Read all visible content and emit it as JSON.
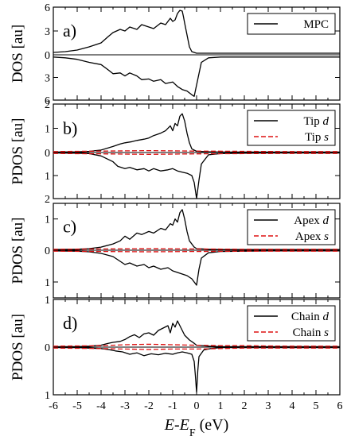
{
  "chart_data": {
    "type": "line",
    "xlabel": {
      "main": "E",
      "sep": "-",
      "e2": "E",
      "sub": "F",
      "unit": " (eV)"
    },
    "xlim": [
      -6,
      6
    ],
    "xticks": [
      "-6",
      "-5",
      "-4",
      "-3",
      "-2",
      "-1",
      "0",
      "1",
      "2",
      "3",
      "4",
      "5",
      "6"
    ],
    "colors": {
      "d": "#000000",
      "s": "#dd1111"
    },
    "panels": [
      {
        "id": "a",
        "letter": "a)",
        "ylabel": "DOS [au]",
        "ylim_top": 6,
        "ylim_bottom": 6,
        "yticks_top": [
          "6",
          "3",
          "0"
        ],
        "yticks_bottom": [
          "3",
          "6"
        ],
        "legend": [
          {
            "name": "MPC",
            "style": "solid",
            "color": "#000000"
          }
        ],
        "series": [
          {
            "name": "MPC (up)",
            "style": "solid",
            "color": "#000000",
            "sign": 1,
            "x": [
              -6,
              -5.5,
              -5,
              -4.5,
              -4,
              -3.7,
              -3.5,
              -3.2,
              -3,
              -2.8,
              -2.5,
              -2.3,
              -2,
              -1.8,
              -1.5,
              -1.3,
              -1.1,
              -1,
              -0.9,
              -0.8,
              -0.7,
              -0.6,
              -0.55,
              -0.5,
              -0.4,
              -0.3,
              -0.2,
              0,
              0.2,
              0.5,
              1,
              2,
              3,
              4,
              5,
              6
            ],
            "y": [
              0.3,
              0.4,
              0.6,
              1,
              1.5,
              2.3,
              2.8,
              3.2,
              3,
              3.5,
              3.2,
              3.8,
              3.5,
              3.3,
              4,
              3.8,
              4.6,
              4.2,
              4.4,
              5.2,
              5.6,
              5.5,
              4.8,
              4,
              2.5,
              1,
              0.4,
              0.2,
              0.2,
              0.2,
              0.2,
              0.2,
              0.2,
              0.2,
              0.2,
              0.2
            ]
          },
          {
            "name": "MPC (down)",
            "style": "solid",
            "color": "#000000",
            "sign": -1,
            "x": [
              -6,
              -5.5,
              -5,
              -4.5,
              -4,
              -3.7,
              -3.5,
              -3.2,
              -3,
              -2.8,
              -2.5,
              -2.3,
              -2,
              -1.8,
              -1.5,
              -1.3,
              -1,
              -0.8,
              -0.6,
              -0.4,
              -0.2,
              -0.1,
              0,
              0.1,
              0.2,
              0.5,
              1,
              2,
              3,
              4,
              5,
              6
            ],
            "y": [
              0.3,
              0.4,
              0.6,
              1,
              1.3,
              2,
              2.5,
              2.4,
              2.8,
              2.4,
              2.8,
              3.3,
              3.2,
              3.5,
              3.3,
              3.8,
              3.6,
              4.2,
              4.6,
              4.8,
              5.3,
              5.5,
              4,
              2.5,
              1,
              0.4,
              0.3,
              0.3,
              0.3,
              0.3,
              0.3,
              0.3
            ]
          }
        ]
      },
      {
        "id": "b",
        "letter": "b)",
        "ylabel": "PDOS [au]",
        "ylim_top": 2,
        "ylim_bottom": 2,
        "yticks_top": [
          "2",
          "1",
          "0"
        ],
        "yticks_bottom": [
          "1",
          "2"
        ],
        "legend": [
          {
            "name": "Tip ",
            "italic": "d",
            "style": "solid",
            "color": "#000000"
          },
          {
            "name": "Tip ",
            "italic": "s",
            "style": "dashed",
            "color": "#dd1111"
          }
        ],
        "series": [
          {
            "name": "Tip d (up)",
            "style": "solid",
            "color": "#000000",
            "sign": 1,
            "x": [
              -6,
              -5,
              -4.5,
              -4,
              -3.5,
              -3.2,
              -3,
              -2.7,
              -2.5,
              -2.2,
              -2,
              -1.8,
              -1.5,
              -1.3,
              -1.1,
              -1,
              -0.9,
              -0.8,
              -0.7,
              -0.6,
              -0.5,
              -0.4,
              -0.3,
              -0.2,
              0,
              0.5,
              1,
              2,
              3,
              4,
              5,
              6
            ],
            "y": [
              0.02,
              0.03,
              0.05,
              0.1,
              0.25,
              0.35,
              0.4,
              0.45,
              0.5,
              0.55,
              0.6,
              0.7,
              0.8,
              0.9,
              1.1,
              0.9,
              1.2,
              1.1,
              1.5,
              1.6,
              1.3,
              0.8,
              0.4,
              0.15,
              0.05,
              0.03,
              0.02,
              0.02,
              0.02,
              0.02,
              0.02,
              0.02
            ]
          },
          {
            "name": "Tip d (down)",
            "style": "solid",
            "color": "#000000",
            "sign": -1,
            "x": [
              -6,
              -5,
              -4.5,
              -4,
              -3.7,
              -3.5,
              -3.3,
              -3,
              -2.8,
              -2.5,
              -2.2,
              -2,
              -1.8,
              -1.5,
              -1.2,
              -1,
              -0.8,
              -0.6,
              -0.4,
              -0.2,
              -0.1,
              0,
              0.1,
              0.2,
              0.5,
              1,
              2,
              3,
              4,
              5,
              6
            ],
            "y": [
              0.02,
              0.03,
              0.05,
              0.15,
              0.3,
              0.4,
              0.6,
              0.7,
              0.65,
              0.75,
              0.7,
              0.8,
              0.7,
              0.8,
              0.75,
              0.7,
              0.8,
              0.85,
              0.9,
              1.0,
              1.3,
              2.0,
              1.2,
              0.5,
              0.1,
              0.05,
              0.03,
              0.02,
              0.02,
              0.02,
              0.02
            ]
          },
          {
            "name": "Tip s (up)",
            "style": "dashed",
            "color": "#dd1111",
            "sign": 1,
            "x": [
              -6,
              -4,
              -2,
              0,
              2,
              4,
              6
            ],
            "y": [
              0.04,
              0.06,
              0.08,
              0.06,
              0.05,
              0.04,
              0.04
            ]
          },
          {
            "name": "Tip s (down)",
            "style": "dashed",
            "color": "#dd1111",
            "sign": -1,
            "x": [
              -6,
              -4,
              -2,
              0,
              2,
              4,
              6
            ],
            "y": [
              0.04,
              0.06,
              0.08,
              0.06,
              0.05,
              0.04,
              0.04
            ]
          }
        ]
      },
      {
        "id": "c",
        "letter": "c)",
        "ylabel": "PDOS [au]",
        "ylim_top": 1.5,
        "ylim_bottom": 1.5,
        "yticks_top": [
          "1",
          "0"
        ],
        "yticks_bottom": [
          "1"
        ],
        "ytick_values_top": [
          1,
          0
        ],
        "ytick_values_bottom": [
          1
        ],
        "legend": [
          {
            "name": "Apex ",
            "italic": "d",
            "style": "solid",
            "color": "#000000"
          },
          {
            "name": "Apex ",
            "italic": "s",
            "style": "dashed",
            "color": "#dd1111"
          }
        ],
        "series": [
          {
            "name": "Apex d (up)",
            "style": "solid",
            "color": "#000000",
            "sign": 1,
            "x": [
              -6,
              -5,
              -4.5,
              -4,
              -3.5,
              -3.2,
              -3,
              -2.8,
              -2.5,
              -2.3,
              -2,
              -1.8,
              -1.5,
              -1.3,
              -1.1,
              -1,
              -0.9,
              -0.8,
              -0.7,
              -0.6,
              -0.5,
              -0.4,
              -0.3,
              -0.1,
              0,
              0.5,
              1,
              2,
              3,
              4,
              5,
              6
            ],
            "y": [
              0.02,
              0.03,
              0.05,
              0.1,
              0.2,
              0.3,
              0.45,
              0.35,
              0.55,
              0.5,
              0.6,
              0.55,
              0.7,
              0.65,
              0.85,
              0.8,
              1.0,
              0.9,
              1.2,
              1.3,
              1.0,
              0.6,
              0.3,
              0.1,
              0.05,
              0.03,
              0.02,
              0.02,
              0.02,
              0.02,
              0.02,
              0.02
            ]
          },
          {
            "name": "Apex d (down)",
            "style": "solid",
            "color": "#000000",
            "sign": -1,
            "x": [
              -6,
              -5,
              -4.5,
              -4,
              -3.5,
              -3.3,
              -3,
              -2.8,
              -2.5,
              -2.2,
              -2,
              -1.8,
              -1.5,
              -1.2,
              -1,
              -0.8,
              -0.6,
              -0.4,
              -0.2,
              -0.1,
              0,
              0.1,
              0.2,
              0.5,
              1,
              2,
              3,
              4,
              5,
              6
            ],
            "y": [
              0.02,
              0.03,
              0.05,
              0.1,
              0.2,
              0.3,
              0.45,
              0.4,
              0.5,
              0.45,
              0.55,
              0.5,
              0.6,
              0.55,
              0.65,
              0.7,
              0.75,
              0.8,
              0.9,
              1.0,
              1.1,
              0.6,
              0.25,
              0.08,
              0.04,
              0.03,
              0.02,
              0.02,
              0.02,
              0.02
            ]
          },
          {
            "name": "Apex s (up)",
            "style": "dashed",
            "color": "#dd1111",
            "sign": 1,
            "x": [
              -6,
              -4,
              -2,
              0,
              2,
              4,
              6
            ],
            "y": [
              0.03,
              0.04,
              0.05,
              0.04,
              0.03,
              0.03,
              0.03
            ]
          },
          {
            "name": "Apex s (down)",
            "style": "dashed",
            "color": "#dd1111",
            "sign": -1,
            "x": [
              -6,
              -4,
              -2,
              0,
              2,
              4,
              6
            ],
            "y": [
              0.03,
              0.04,
              0.05,
              0.04,
              0.03,
              0.03,
              0.03
            ]
          }
        ]
      },
      {
        "id": "d",
        "letter": "d)",
        "ylabel": "PDOS [au]",
        "ylim_top": 1,
        "ylim_bottom": 1,
        "yticks_top": [
          "1",
          "0"
        ],
        "yticks_bottom": [
          "1"
        ],
        "legend": [
          {
            "name": "Chain ",
            "italic": "d",
            "style": "solid",
            "color": "#000000"
          },
          {
            "name": "Chain ",
            "italic": "s",
            "style": "dashed",
            "color": "#dd1111"
          }
        ],
        "series": [
          {
            "name": "Chain d (up)",
            "style": "solid",
            "color": "#000000",
            "sign": 1,
            "x": [
              -6,
              -5,
              -4.5,
              -4,
              -3.7,
              -3.5,
              -3.2,
              -3,
              -2.8,
              -2.6,
              -2.4,
              -2.2,
              -2,
              -1.8,
              -1.6,
              -1.4,
              -1.2,
              -1.1,
              -1,
              -0.9,
              -0.8,
              -0.7,
              -0.6,
              -0.5,
              -0.3,
              -0.1,
              0,
              0.5,
              1,
              2,
              3,
              4,
              5,
              6
            ],
            "y": [
              0.01,
              0.01,
              0.02,
              0.04,
              0.08,
              0.1,
              0.12,
              0.16,
              0.22,
              0.26,
              0.2,
              0.28,
              0.3,
              0.25,
              0.35,
              0.4,
              0.45,
              0.3,
              0.5,
              0.42,
              0.55,
              0.45,
              0.35,
              0.25,
              0.15,
              0.08,
              0.04,
              0.02,
              0.01,
              0.01,
              0.01,
              0.01,
              0.01,
              0.01
            ]
          },
          {
            "name": "Chain d (down)",
            "style": "solid",
            "color": "#000000",
            "sign": -1,
            "x": [
              -6,
              -5,
              -4.5,
              -4,
              -3.7,
              -3.4,
              -3.1,
              -2.8,
              -2.5,
              -2.2,
              -1.9,
              -1.6,
              -1.3,
              -1,
              -0.8,
              -0.6,
              -0.4,
              -0.2,
              -0.1,
              -0.05,
              0,
              0.05,
              0.1,
              0.3,
              0.6,
              1,
              2,
              3,
              4,
              5,
              6
            ],
            "y": [
              0.01,
              0.01,
              0.02,
              0.03,
              0.05,
              0.08,
              0.1,
              0.15,
              0.12,
              0.18,
              0.14,
              0.16,
              0.13,
              0.15,
              0.12,
              0.1,
              0.12,
              0.15,
              0.3,
              0.6,
              0.95,
              0.5,
              0.2,
              0.06,
              0.03,
              0.01,
              0.01,
              0.01,
              0.01,
              0.01,
              0.01
            ]
          },
          {
            "name": "Chain s (up)",
            "style": "dashed",
            "color": "#dd1111",
            "sign": 1,
            "x": [
              -6,
              -4,
              -3,
              -2,
              -1,
              0,
              1,
              2,
              4,
              6
            ],
            "y": [
              0.02,
              0.03,
              0.05,
              0.06,
              0.05,
              0.04,
              0.03,
              0.03,
              0.02,
              0.02
            ]
          },
          {
            "name": "Chain s (down)",
            "style": "dashed",
            "color": "#dd1111",
            "sign": -1,
            "x": [
              -6,
              -4,
              -3,
              -2,
              -1,
              0,
              1,
              2,
              4,
              6
            ],
            "y": [
              0.02,
              0.03,
              0.04,
              0.05,
              0.04,
              0.04,
              0.03,
              0.02,
              0.02,
              0.02
            ]
          }
        ]
      }
    ]
  }
}
